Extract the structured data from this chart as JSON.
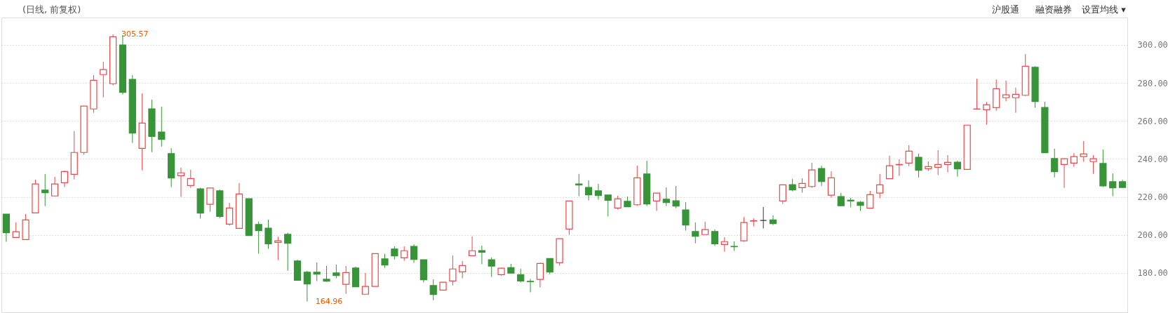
{
  "chart_data": {
    "type": "candlestick",
    "title": "(日线, 前复权)",
    "categories": [
      null,
      null,
      null,
      null,
      null,
      null,
      null,
      null,
      null,
      null,
      null,
      null,
      null,
      null,
      null,
      null,
      null,
      null,
      null,
      null,
      null,
      null,
      null,
      null,
      null,
      null,
      null,
      null,
      null,
      null,
      null,
      null,
      null,
      null,
      null,
      null,
      null,
      null,
      null,
      null,
      null,
      null,
      null,
      null,
      null,
      null,
      null,
      null,
      null,
      null,
      null,
      null,
      null,
      null,
      null,
      null,
      null,
      null,
      null,
      null,
      null,
      null,
      null,
      null,
      null,
      null,
      null,
      null,
      null,
      null,
      null,
      null,
      null,
      null,
      null,
      null,
      null,
      null,
      null,
      null,
      null,
      null,
      null,
      null,
      null,
      null,
      null,
      null,
      null,
      null,
      null,
      null,
      null,
      null,
      null,
      null,
      null,
      null,
      null,
      null,
      null,
      null,
      null,
      null,
      null,
      null,
      null,
      null,
      null,
      null,
      null,
      null,
      null,
      null,
      null,
      null
    ],
    "ohlc": [
      [
        211.0,
        211.0,
        196.4,
        201.2
      ],
      [
        198.7,
        206.6,
        198.7,
        201.7
      ],
      [
        197.6,
        211.0,
        197.6,
        207.9
      ],
      [
        211.6,
        229.1,
        211.6,
        226.8
      ],
      [
        223.6,
        232.1,
        215.2,
        222.2
      ],
      [
        220.5,
        230.6,
        220.5,
        226.8
      ],
      [
        227.5,
        233.9,
        225.2,
        233.4
      ],
      [
        231.9,
        254.6,
        229.2,
        243.4
      ],
      [
        243.4,
        267.8,
        242.2,
        267.8
      ],
      [
        266.3,
        284.1,
        264.3,
        281.4
      ],
      [
        284.4,
        291.1,
        272.4,
        287.0
      ],
      [
        279.6,
        305.57,
        278.7,
        304.3
      ],
      [
        300.0,
        305.3,
        273.9,
        275.0
      ],
      [
        281.9,
        284.1,
        248.4,
        253.6
      ],
      [
        245.6,
        274.5,
        234.0,
        258.9
      ],
      [
        266.4,
        271.2,
        243.6,
        251.8
      ],
      [
        254.2,
        267.5,
        246.5,
        250.3
      ],
      [
        242.8,
        245.7,
        225.2,
        230.0
      ],
      [
        231.2,
        235.4,
        220.0,
        232.7
      ],
      [
        226.0,
        234.3,
        224.8,
        229.7
      ],
      [
        224.3,
        224.8,
        208.6,
        211.5
      ],
      [
        216.1,
        224.7,
        212.2,
        224.7
      ],
      [
        223.2,
        223.9,
        208.9,
        209.7
      ],
      [
        205.7,
        216.9,
        204.9,
        214.2
      ],
      [
        203.5,
        227.3,
        203.5,
        221.6
      ],
      [
        219.1,
        219.1,
        199.7,
        199.7
      ],
      [
        205.5,
        207.0,
        190.1,
        202.3
      ],
      [
        203.6,
        208.1,
        192.7,
        195.3
      ],
      [
        196.1,
        199.1,
        186.8,
        196.9
      ],
      [
        200.3,
        201.2,
        181.2,
        195.6
      ],
      [
        186.3,
        187.0,
        176.1,
        176.1
      ],
      [
        180.4,
        181.1,
        164.96,
        174.2
      ],
      [
        180.4,
        185.5,
        175.7,
        179.4
      ],
      [
        176.7,
        183.7,
        175.3,
        175.7
      ],
      [
        180.0,
        184.4,
        177.2,
        178.6
      ],
      [
        174.0,
        183.7,
        169.0,
        180.2
      ],
      [
        182.6,
        183.3,
        172.7,
        172.7
      ],
      [
        168.8,
        180.0,
        168.8,
        172.9
      ],
      [
        172.9,
        190.2,
        172.9,
        190.2
      ],
      [
        187.4,
        190.0,
        182.7,
        184.2
      ],
      [
        192.6,
        194.0,
        187.1,
        189.0
      ],
      [
        188.0,
        194.0,
        186.4,
        191.7
      ],
      [
        194.0,
        195.1,
        185.3,
        187.1
      ],
      [
        187.0,
        187.0,
        175.0,
        176.4
      ],
      [
        173.4,
        176.7,
        165.7,
        168.7
      ],
      [
        171.0,
        175.1,
        171.0,
        175.1
      ],
      [
        175.8,
        189.2,
        173.5,
        182.1
      ],
      [
        180.6,
        186.3,
        177.2,
        183.9
      ],
      [
        189.1,
        199.2,
        189.1,
        191.7
      ],
      [
        191.8,
        194.4,
        184.6,
        190.9
      ],
      [
        187.0,
        188.1,
        177.9,
        183.6
      ],
      [
        179.1,
        182.8,
        178.6,
        182.5
      ],
      [
        182.8,
        184.8,
        179.9,
        179.9
      ],
      [
        179.1,
        182.2,
        175.0,
        175.8
      ],
      [
        175.6,
        176.9,
        169.8,
        175.4
      ],
      [
        176.6,
        185.3,
        172.4,
        185.0
      ],
      [
        187.6,
        187.6,
        179.4,
        180.5
      ],
      [
        185.4,
        198.0,
        183.8,
        198.0
      ],
      [
        203.1,
        217.9,
        200.1,
        217.9
      ],
      [
        226.8,
        232.1,
        220.4,
        226.3
      ],
      [
        225.0,
        228.7,
        218.2,
        221.1
      ],
      [
        223.2,
        226.9,
        218.5,
        220.7
      ],
      [
        221.0,
        221.0,
        209.7,
        218.2
      ],
      [
        214.2,
        220.6,
        213.4,
        219.0
      ],
      [
        217.7,
        220.2,
        214.8,
        214.8
      ],
      [
        215.9,
        236.5,
        215.2,
        230.1
      ],
      [
        232.1,
        239.1,
        215.2,
        216.3
      ],
      [
        217.9,
        222.0,
        212.6,
        222.0
      ],
      [
        218.8,
        225.0,
        215.2,
        217.0
      ],
      [
        218.0,
        225.8,
        214.1,
        215.2
      ],
      [
        213.2,
        217.3,
        202.3,
        205.2
      ],
      [
        201.8,
        206.6,
        195.6,
        199.3
      ],
      [
        200.2,
        207.0,
        200.2,
        202.8
      ],
      [
        201.8,
        202.9,
        194.2,
        195.3
      ],
      [
        195.0,
        198.8,
        191.2,
        196.5
      ],
      [
        194.0,
        196.6,
        191.6,
        193.8
      ],
      [
        196.9,
        209.4,
        196.4,
        206.5
      ],
      [
        207.3,
        208.7,
        204.5,
        207.5
      ],
      [
        207.6,
        214.7,
        203.4,
        207.6
      ],
      [
        207.9,
        210.3,
        205.2,
        206.0
      ],
      [
        217.9,
        226.4,
        216.3,
        226.4
      ],
      [
        226.5,
        229.5,
        223.0,
        223.7
      ],
      [
        224.9,
        229.8,
        222.2,
        227.1
      ],
      [
        225.5,
        238.0,
        224.8,
        234.2
      ],
      [
        235.0,
        236.5,
        225.8,
        228.1
      ],
      [
        220.9,
        233.5,
        219.6,
        230.1
      ],
      [
        220.2,
        222.1,
        215.2,
        215.4
      ],
      [
        218.3,
        219.5,
        214.5,
        217.9
      ],
      [
        217.2,
        217.8,
        212.6,
        215.6
      ],
      [
        214.1,
        223.2,
        214.1,
        221.2
      ],
      [
        222.0,
        232.1,
        219.3,
        226.4
      ],
      [
        229.6,
        241.7,
        229.6,
        236.4
      ],
      [
        236.9,
        239.8,
        231.1,
        237.1
      ],
      [
        237.8,
        247.2,
        236.2,
        244.1
      ],
      [
        240.9,
        242.8,
        230.3,
        234.0
      ],
      [
        234.9,
        238.7,
        233.7,
        236.0
      ],
      [
        235.6,
        244.6,
        231.6,
        237.1
      ],
      [
        237.1,
        242.0,
        232.9,
        238.2
      ],
      [
        238.3,
        239.1,
        230.7,
        234.8
      ],
      [
        234.5,
        257.8,
        234.5,
        257.8
      ],
      [
        266.2,
        282.2,
        266.2,
        266.3
      ],
      [
        265.9,
        270.0,
        258.0,
        268.5
      ],
      [
        267.0,
        281.8,
        265.4,
        277.0
      ],
      [
        272.2,
        281.2,
        270.3,
        273.7
      ],
      [
        272.2,
        277.5,
        264.3,
        274.0
      ],
      [
        273.5,
        295.2,
        273.2,
        288.8
      ],
      [
        288.2,
        288.8,
        266.9,
        270.2
      ],
      [
        267.1,
        270.1,
        243.3,
        243.3
      ],
      [
        240.2,
        245.4,
        230.3,
        233.3
      ],
      [
        237.1,
        240.3,
        224.8,
        240.1
      ],
      [
        237.8,
        243.1,
        235.9,
        241.2
      ],
      [
        241.2,
        249.4,
        238.5,
        242.6
      ],
      [
        238.6,
        242.0,
        232.2,
        240.1
      ],
      [
        237.6,
        245.0,
        225.3,
        225.8
      ],
      [
        228.0,
        232.4,
        220.4,
        224.8
      ],
      [
        228.0,
        229.0,
        224.8,
        225.0
      ]
    ],
    "colors": [
      "#389438",
      "#e84a4a",
      "#e84a4a",
      "#e84a4a",
      "#389438",
      "#e84a4a",
      "#e84a4a",
      "#e84a4a",
      "#e84a4a",
      "#e84a4a",
      "#e84a4a",
      "#e84a4a",
      "#389438",
      "#389438",
      "#e84a4a",
      "#389438",
      "#389438",
      "#389438",
      "#e84a4a",
      "#e84a4a",
      "#389438",
      "#e84a4a",
      "#389438",
      "#e84a4a",
      "#e84a4a",
      "#389438",
      "#389438",
      "#389438",
      "#e84a4a",
      "#389438",
      "#389438",
      "#389438",
      "#389438",
      "#389438",
      "#389438",
      "#e84a4a",
      "#389438",
      "#e84a4a",
      "#e84a4a",
      "#389438",
      "#389438",
      "#e84a4a",
      "#389438",
      "#389438",
      "#389438",
      "#e84a4a",
      "#e84a4a",
      "#e84a4a",
      "#e84a4a",
      "#389438",
      "#389438",
      "#e84a4a",
      "#389438",
      "#389438",
      "#389438",
      "#e84a4a",
      "#389438",
      "#e84a4a",
      "#e84a4a",
      "#389438",
      "#389438",
      "#389438",
      "#389438",
      "#e84a4a",
      "#389438",
      "#e84a4a",
      "#389438",
      "#e84a4a",
      "#389438",
      "#389438",
      "#389438",
      "#389438",
      "#e84a4a",
      "#389438",
      "#e84a4a",
      "#389438",
      "#e84a4a",
      "#e84a4a",
      "#333333",
      "#389438",
      "#e84a4a",
      "#389438",
      "#e84a4a",
      "#e84a4a",
      "#389438",
      "#e84a4a",
      "#389438",
      "#389438",
      "#389438",
      "#e84a4a",
      "#e84a4a",
      "#e84a4a",
      "#e84a4a",
      "#e84a4a",
      "#389438",
      "#e84a4a",
      "#e84a4a",
      "#e84a4a",
      "#389438",
      "#e84a4a",
      "#e84a4a",
      "#e84a4a",
      "#e84a4a",
      "#e84a4a",
      "#e84a4a",
      "#e84a4a",
      "#389438",
      "#389438",
      "#389438",
      "#e84a4a",
      "#e84a4a",
      "#e84a4a",
      "#e84a4a",
      "#389438",
      "#389438",
      "#389438"
    ],
    "ylim": [
      159.3,
      314.4
    ],
    "yticks": [
      {
        "value": 180,
        "label": "180.00"
      },
      {
        "value": 200,
        "label": "200.00"
      },
      {
        "value": 220,
        "label": "220.00"
      },
      {
        "value": 240,
        "label": "240.00"
      },
      {
        "value": 260,
        "label": "260.00"
      },
      {
        "value": 280,
        "label": "280.00"
      },
      {
        "value": 300,
        "label": "300.00"
      }
    ],
    "grid": "y",
    "annotations": [
      "305.57",
      "164.96",
      "沪股通",
      "融资融券",
      "设置均线 ▾"
    ]
  }
}
